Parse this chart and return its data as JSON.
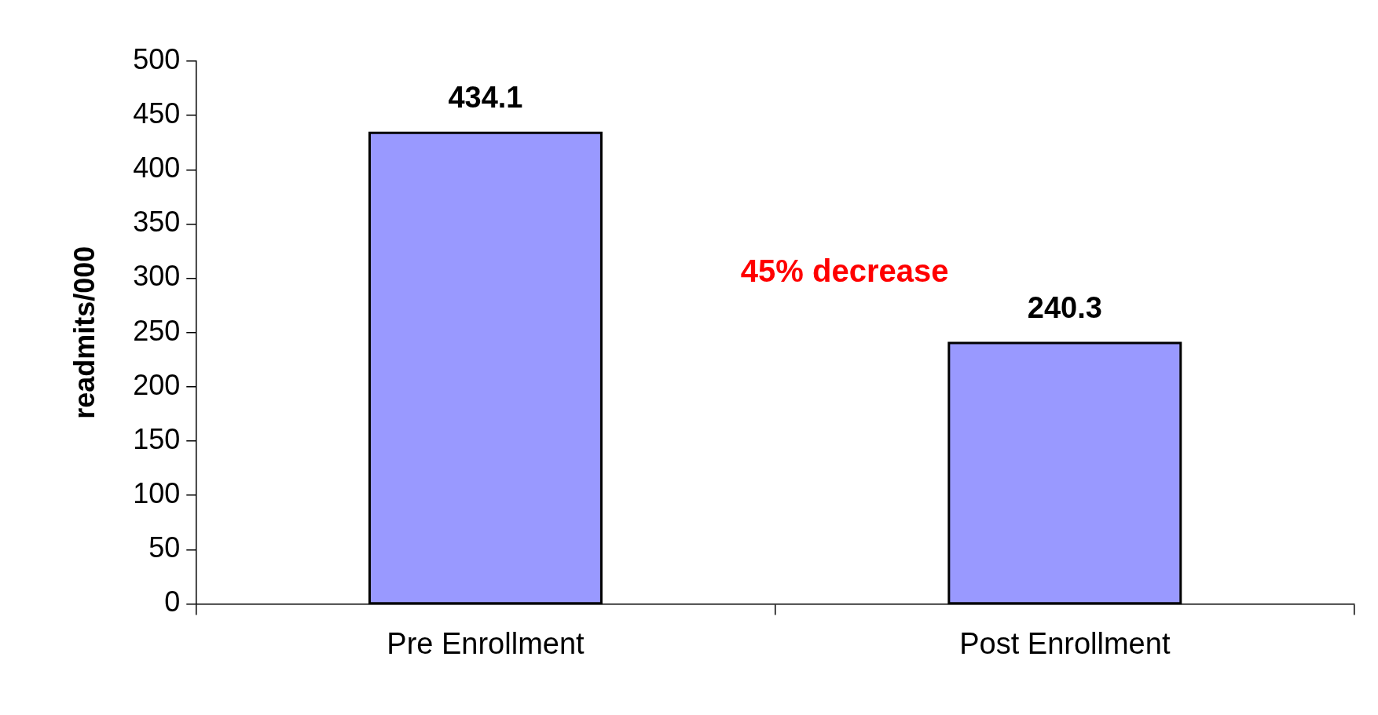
{
  "chart_data": {
    "type": "bar",
    "ylabel": "readmits/000",
    "categories": [
      "Pre Enrollment",
      "Post Enrollment"
    ],
    "values": [
      434.1,
      240.3
    ],
    "color": "#9999ff",
    "ylim": [
      0,
      500
    ],
    "yticks": [
      0,
      50,
      100,
      150,
      200,
      250,
      300,
      350,
      400,
      450,
      500
    ],
    "grid": false,
    "legend": false,
    "data_labels": true,
    "annotations": [
      "45% decrease"
    ]
  }
}
